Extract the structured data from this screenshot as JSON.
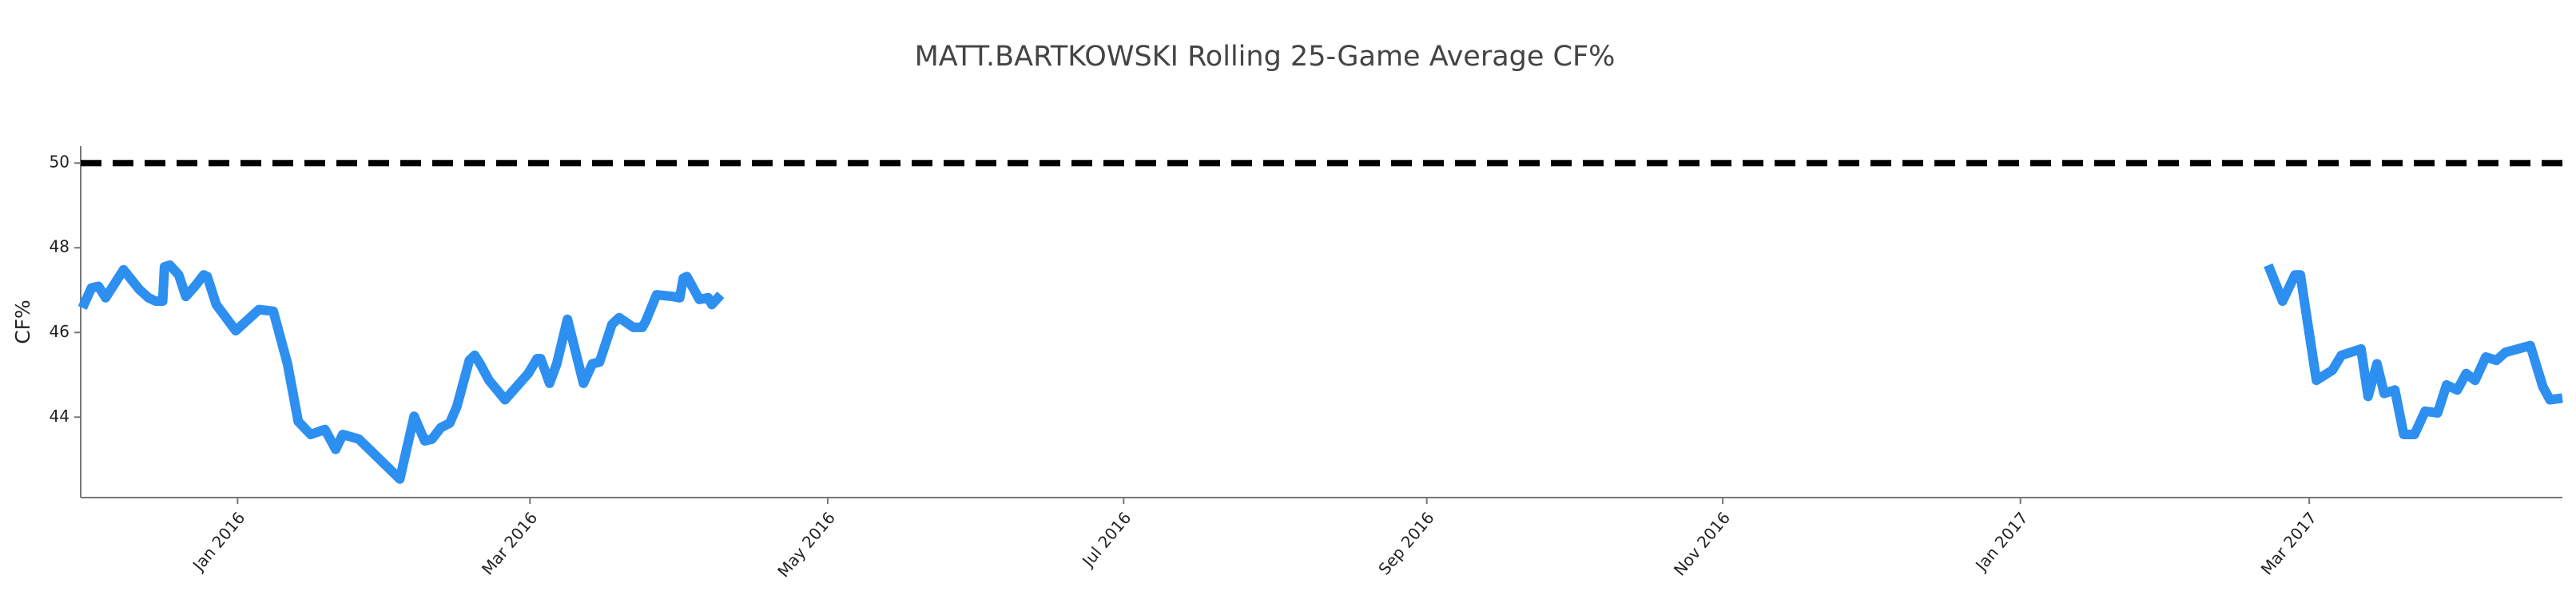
{
  "chart_data": {
    "type": "line",
    "title": "MATT.BARTKOWSKI Rolling 25-Game Average CF%",
    "y_label": "CF%",
    "color": "#2d8ff0",
    "reference_line": {
      "value": 50,
      "color": "#000000"
    },
    "x": [
      2015.913,
      2015.918,
      2015.922,
      2015.926,
      2015.936,
      2015.945,
      2015.95,
      2015.954,
      2015.958,
      2015.959,
      2015.962,
      2015.967,
      2015.971,
      2015.976,
      2015.981,
      2015.983,
      2015.988,
      2015.999,
      2016.012,
      2016.02,
      2016.028,
      2016.034,
      2016.041,
      2016.049,
      2016.055,
      2016.059,
      2016.068,
      2016.091,
      2016.099,
      2016.105,
      2016.109,
      2016.114,
      2016.119,
      2016.123,
      2016.13,
      2016.133,
      2016.136,
      2016.141,
      2016.15,
      2016.163,
      2016.168,
      2016.17,
      2016.175,
      2016.179,
      2016.185,
      2016.194,
      2016.199,
      2016.203,
      2016.21,
      2016.214,
      2016.222,
      2016.227,
      2016.229,
      2016.235,
      2016.244,
      2016.248,
      2016.25,
      2016.252,
      2016.259,
      2016.264,
      2016.266,
      2016.271,
      2016.6,
      2017.139,
      2017.147,
      2017.154,
      2017.157,
      2017.166,
      2017.175,
      2017.18,
      2017.191,
      2017.195,
      2017.2,
      2017.204,
      2017.21,
      2017.215,
      2017.221,
      2017.227,
      2017.234,
      2017.239,
      2017.245,
      2017.25,
      2017.255,
      2017.261,
      2017.267,
      2017.272,
      2017.286,
      2017.293,
      2017.297,
      2017.304
    ],
    "values": [
      46.58,
      47.05,
      47.09,
      46.82,
      47.48,
      47.01,
      46.82,
      46.74,
      46.74,
      47.55,
      47.59,
      47.36,
      46.85,
      47.09,
      47.36,
      47.32,
      46.66,
      46.04,
      46.54,
      46.5,
      45.26,
      43.9,
      43.59,
      43.71,
      43.24,
      43.59,
      43.48,
      42.54,
      44.02,
      43.44,
      43.48,
      43.75,
      43.86,
      44.25,
      45.34,
      45.46,
      45.26,
      44.87,
      44.41,
      45.03,
      45.38,
      45.38,
      44.8,
      45.26,
      46.31,
      44.8,
      45.26,
      45.3,
      46.19,
      46.35,
      46.12,
      46.12,
      46.27,
      46.89,
      46.85,
      46.82,
      47.28,
      47.32,
      46.78,
      46.82,
      46.66,
      46.89,
      null,
      47.59,
      46.74,
      47.36,
      47.36,
      44.87,
      45.11,
      45.46,
      45.61,
      44.49,
      45.26,
      44.56,
      44.64,
      43.59,
      43.59,
      44.14,
      44.1,
      44.76,
      44.64,
      45.03,
      44.87,
      45.42,
      45.34,
      45.53,
      45.69,
      44.72,
      44.41,
      44.45
    ],
    "xlim": [
      2015.912,
      2017.304
    ],
    "xticks": [
      {
        "value": 2016.0,
        "label": "Jan 2016"
      },
      {
        "value": 2016.164,
        "label": "Mar 2016"
      },
      {
        "value": 2016.331,
        "label": "May 2016"
      },
      {
        "value": 2016.497,
        "label": "Jul 2016"
      },
      {
        "value": 2016.667,
        "label": "Sep 2016"
      },
      {
        "value": 2016.833,
        "label": "Nov 2016"
      },
      {
        "value": 2017.0,
        "label": "Jan 2017"
      },
      {
        "value": 2017.162,
        "label": "Mar 2017"
      }
    ],
    "ylim": [
      42.1,
      50.4
    ],
    "yticks": [
      44,
      46,
      48,
      50
    ]
  }
}
